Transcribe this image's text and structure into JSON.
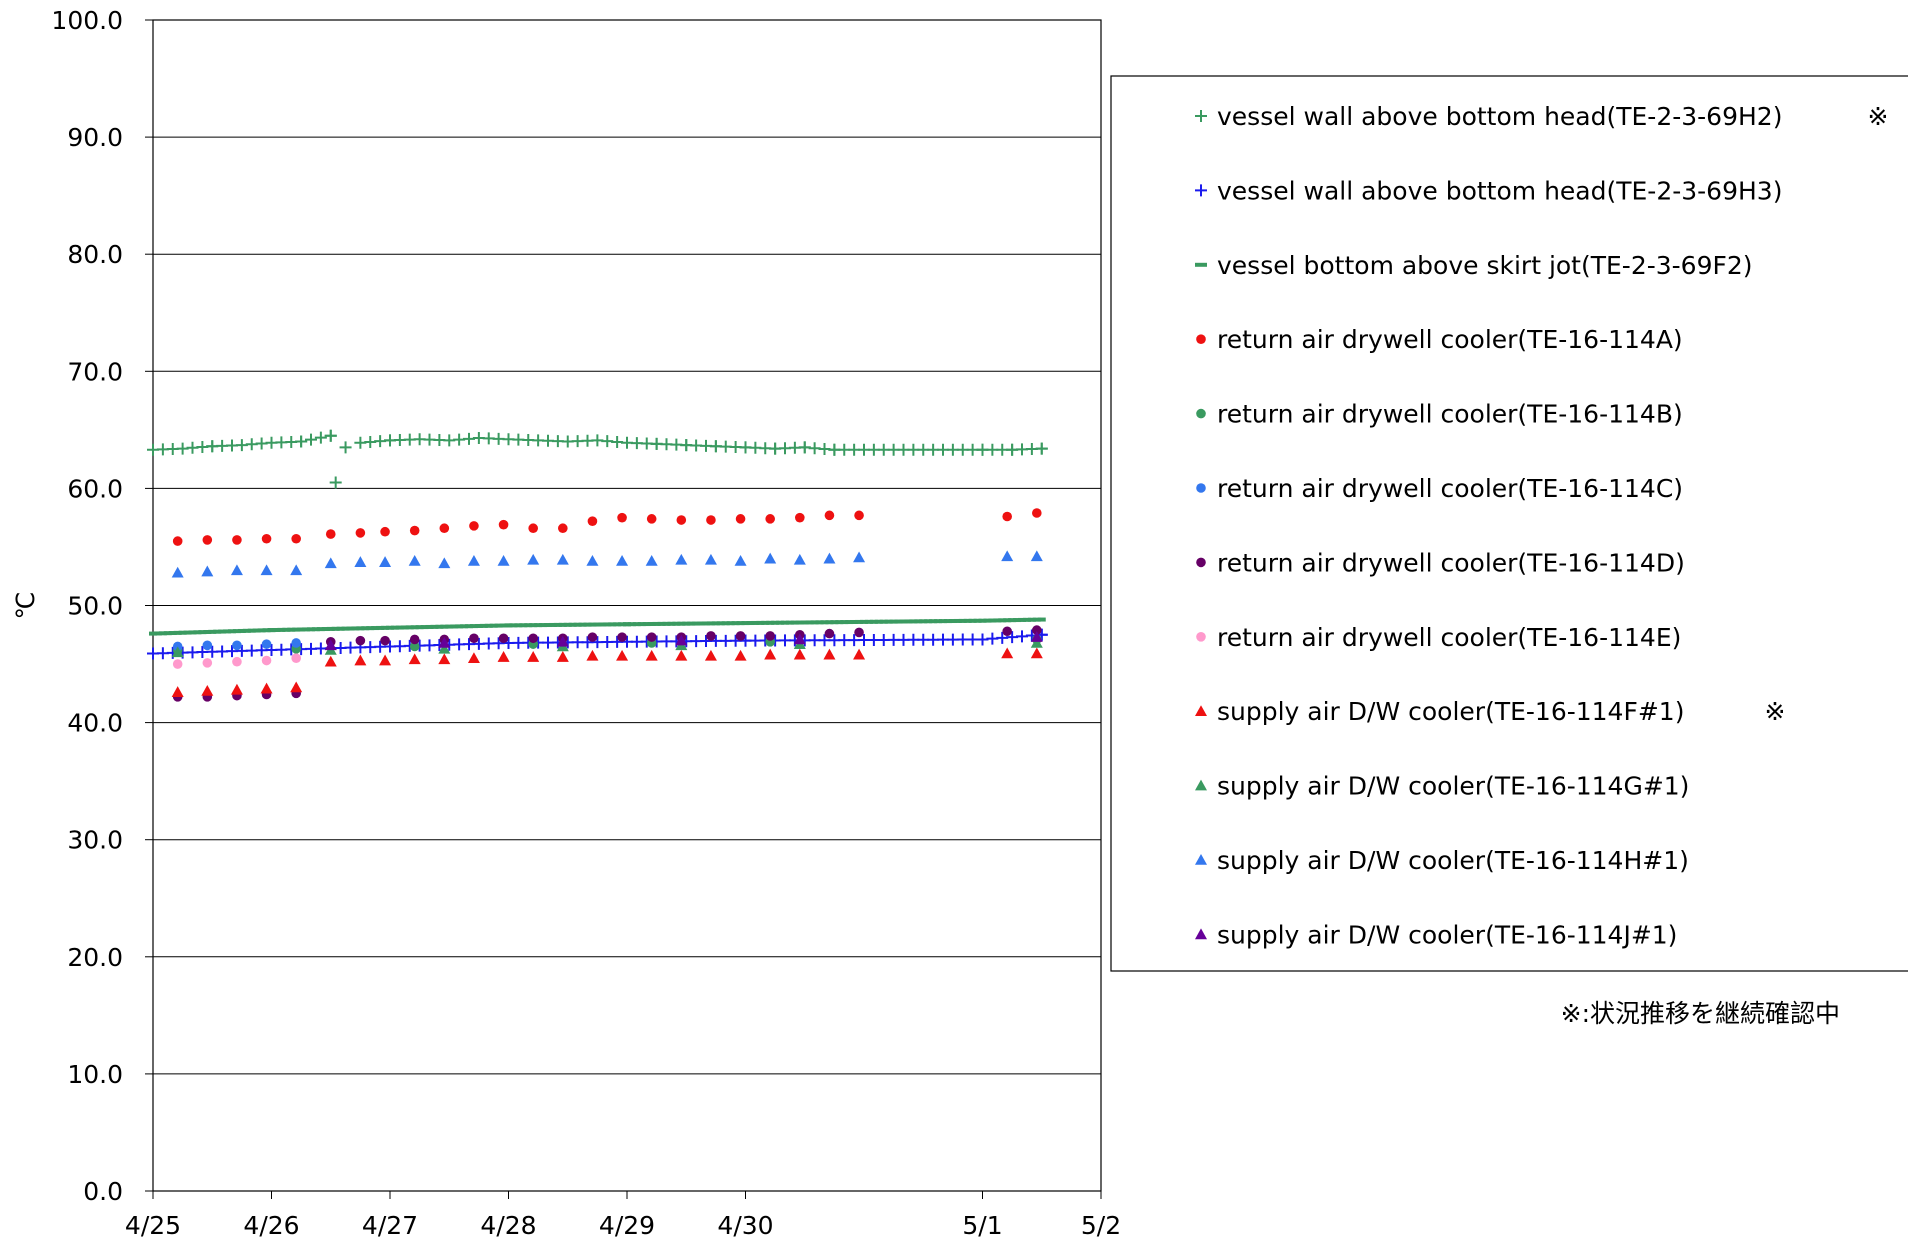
{
  "chart_data": {
    "type": "scatter",
    "ylabel": "℃",
    "ylim": [
      0,
      100
    ],
    "yticks": [
      "0.0",
      "10.0",
      "20.0",
      "30.0",
      "40.0",
      "50.0",
      "60.0",
      "70.0",
      "80.0",
      "90.0",
      "100.0"
    ],
    "xticks": [
      "4/25",
      "4/26",
      "4/27",
      "4/28",
      "4/29",
      "4/30",
      "5/1",
      "5/2"
    ],
    "xlim": [
      "4/25",
      "5/2"
    ],
    "grid": "horizontal",
    "legend_position": "right",
    "note": "※:状況推移を継続確認中",
    "series": [
      {
        "name": "vessel wall above bottom head(TE-2-3-69H2)",
        "flag": "※",
        "marker": "plus",
        "color": "#3a9a60",
        "start_x": "4/25",
        "end_x": "5/1 12:00",
        "values_note": "dense hourly trace",
        "points": [
          [
            "4/25",
            63.3
          ],
          [
            "4/25 06:00",
            63.4
          ],
          [
            "4/25 12:00",
            63.6
          ],
          [
            "4/25 18:00",
            63.7
          ],
          [
            "4/26",
            63.9
          ],
          [
            "4/26 06:00",
            64.0
          ],
          [
            "4/26 12:00",
            64.5
          ],
          [
            "4/26 13:00",
            60.5
          ],
          [
            "4/26 15:00",
            63.5
          ],
          [
            "4/26 18:00",
            63.9
          ],
          [
            "4/27",
            64.1
          ],
          [
            "4/27 06:00",
            64.2
          ],
          [
            "4/27 12:00",
            64.1
          ],
          [
            "4/27 18:00",
            64.3
          ],
          [
            "4/28",
            64.2
          ],
          [
            "4/28 06:00",
            64.1
          ],
          [
            "4/28 12:00",
            64.0
          ],
          [
            "4/28 18:00",
            64.1
          ],
          [
            "4/29",
            63.9
          ],
          [
            "4/29 06:00",
            63.8
          ],
          [
            "4/29 12:00",
            63.7
          ],
          [
            "4/29 18:00",
            63.6
          ],
          [
            "4/30",
            63.5
          ],
          [
            "4/30 06:00",
            63.4
          ],
          [
            "4/30 12:00",
            63.5
          ],
          [
            "4/30 18:00",
            63.3
          ],
          [
            "5/1",
            63.3
          ],
          [
            "5/1 06:00",
            63.3
          ],
          [
            "5/1 12:00",
            63.4
          ]
        ]
      },
      {
        "name": "vessel wall above bottom head(TE-2-3-69H3)",
        "marker": "plus",
        "color": "#1a1aee",
        "points": [
          [
            "4/25",
            45.9
          ],
          [
            "4/26",
            46.2
          ],
          [
            "4/27",
            46.5
          ],
          [
            "4/28",
            46.8
          ],
          [
            "4/29",
            46.9
          ],
          [
            "4/30",
            47.0
          ],
          [
            "5/1",
            47.1
          ],
          [
            "5/1 12:00",
            47.5
          ]
        ]
      },
      {
        "name": "vessel bottom above skirt jot(TE-2-3-69F2)",
        "marker": "dash",
        "color": "#3a9a60",
        "points": [
          [
            "4/25",
            47.6
          ],
          [
            "4/26",
            47.9
          ],
          [
            "4/27",
            48.1
          ],
          [
            "4/28",
            48.3
          ],
          [
            "4/29",
            48.4
          ],
          [
            "4/30",
            48.5
          ],
          [
            "5/1",
            48.7
          ],
          [
            "5/1 12:00",
            48.8
          ]
        ]
      },
      {
        "name": "return air drywell cooler(TE-16-114A)",
        "marker": "circle",
        "color": "#ee1111",
        "points": [
          [
            "4/25 05:00",
            55.5
          ],
          [
            "4/25 11:00",
            55.6
          ],
          [
            "4/25 17:00",
            55.6
          ],
          [
            "4/25 23:00",
            55.7
          ],
          [
            "4/26 05:00",
            55.7
          ],
          [
            "4/26 12:00",
            56.1
          ],
          [
            "4/26 18:00",
            56.2
          ],
          [
            "4/26 23:00",
            56.3
          ],
          [
            "4/27 05:00",
            56.4
          ],
          [
            "4/27 11:00",
            56.6
          ],
          [
            "4/27 17:00",
            56.8
          ],
          [
            "4/27 23:00",
            56.9
          ],
          [
            "4/28 05:00",
            56.6
          ],
          [
            "4/28 11:00",
            56.6
          ],
          [
            "4/28 17:00",
            57.2
          ],
          [
            "4/28 23:00",
            57.5
          ],
          [
            "4/29 05:00",
            57.4
          ],
          [
            "4/29 11:00",
            57.3
          ],
          [
            "4/29 17:00",
            57.3
          ],
          [
            "4/29 23:00",
            57.4
          ],
          [
            "4/30 05:00",
            57.4
          ],
          [
            "4/30 11:00",
            57.5
          ],
          [
            "4/30 17:00",
            57.7
          ],
          [
            "4/30 23:00",
            57.7
          ],
          [
            "5/1 05:00",
            57.6
          ],
          [
            "5/1 11:00",
            57.9
          ]
        ]
      },
      {
        "name": "return air drywell cooler(TE-16-114B)",
        "marker": "circle",
        "color": "#3a9a60",
        "points": [
          [
            "4/25 05:00",
            46.2
          ],
          [
            "4/26 05:00",
            46.3
          ],
          [
            "4/27 05:00",
            46.5
          ],
          [
            "4/28 05:00",
            46.7
          ],
          [
            "4/29 05:00",
            46.8
          ],
          [
            "4/30 05:00",
            46.9
          ],
          [
            "5/1 11:00",
            47.1
          ]
        ]
      },
      {
        "name": "return air drywell cooler(TE-16-114C)",
        "marker": "circle",
        "color": "#3377ee",
        "points": [
          [
            "4/25 05:00",
            46.5
          ],
          [
            "4/25 11:00",
            46.6
          ],
          [
            "4/25 17:00",
            46.6
          ],
          [
            "4/25 23:00",
            46.7
          ],
          [
            "4/26 05:00",
            46.8
          ]
        ]
      },
      {
        "name": "return air drywell cooler(TE-16-114D)",
        "marker": "circle",
        "color": "#660066",
        "points": [
          [
            "4/25 05:00",
            42.2
          ],
          [
            "4/25 11:00",
            42.2
          ],
          [
            "4/25 17:00",
            42.3
          ],
          [
            "4/25 23:00",
            42.4
          ],
          [
            "4/26 05:00",
            42.5
          ],
          [
            "4/26 12:00",
            46.9
          ],
          [
            "4/26 18:00",
            47.0
          ],
          [
            "4/26 23:00",
            47.0
          ],
          [
            "4/27 05:00",
            47.1
          ],
          [
            "4/27 11:00",
            47.1
          ],
          [
            "4/27 17:00",
            47.2
          ],
          [
            "4/27 23:00",
            47.2
          ],
          [
            "4/28 05:00",
            47.2
          ],
          [
            "4/28 11:00",
            47.2
          ],
          [
            "4/28 17:00",
            47.3
          ],
          [
            "4/28 23:00",
            47.3
          ],
          [
            "4/29 05:00",
            47.3
          ],
          [
            "4/29 11:00",
            47.3
          ],
          [
            "4/29 17:00",
            47.4
          ],
          [
            "4/29 23:00",
            47.4
          ],
          [
            "4/30 05:00",
            47.4
          ],
          [
            "4/30 11:00",
            47.5
          ],
          [
            "4/30 17:00",
            47.6
          ],
          [
            "4/30 23:00",
            47.7
          ],
          [
            "5/1 05:00",
            47.8
          ],
          [
            "5/1 11:00",
            47.9
          ]
        ]
      },
      {
        "name": "return air drywell cooler(TE-16-114E)",
        "marker": "circle",
        "color": "#ff99cc",
        "points": [
          [
            "4/25 05:00",
            45.0
          ],
          [
            "4/25 11:00",
            45.1
          ],
          [
            "4/25 17:00",
            45.2
          ],
          [
            "4/25 23:00",
            45.3
          ],
          [
            "4/26 05:00",
            45.5
          ]
        ]
      },
      {
        "name": "supply air D/W cooler(TE-16-114F#1)",
        "flag": "※",
        "marker": "triangle",
        "color": "#ee1111",
        "points": [
          [
            "4/25 05:00",
            42.6
          ],
          [
            "4/25 11:00",
            42.7
          ],
          [
            "4/25 17:00",
            42.8
          ],
          [
            "4/25 23:00",
            42.9
          ],
          [
            "4/26 05:00",
            43.0
          ],
          [
            "4/26 12:00",
            45.2
          ],
          [
            "4/26 18:00",
            45.3
          ],
          [
            "4/26 23:00",
            45.3
          ],
          [
            "4/27 05:00",
            45.4
          ],
          [
            "4/27 11:00",
            45.4
          ],
          [
            "4/27 17:00",
            45.5
          ],
          [
            "4/27 23:00",
            45.6
          ],
          [
            "4/28 05:00",
            45.6
          ],
          [
            "4/28 11:00",
            45.6
          ],
          [
            "4/28 17:00",
            45.7
          ],
          [
            "4/28 23:00",
            45.7
          ],
          [
            "4/29 05:00",
            45.7
          ],
          [
            "4/29 11:00",
            45.7
          ],
          [
            "4/29 17:00",
            45.7
          ],
          [
            "4/29 23:00",
            45.7
          ],
          [
            "4/30 05:00",
            45.8
          ],
          [
            "4/30 11:00",
            45.8
          ],
          [
            "4/30 17:00",
            45.8
          ],
          [
            "4/30 23:00",
            45.8
          ],
          [
            "5/1 05:00",
            45.9
          ],
          [
            "5/1 11:00",
            45.9
          ]
        ]
      },
      {
        "name": "supply air D/W cooler(TE-16-114G#1)",
        "marker": "triangle",
        "color": "#3a9a60",
        "points": [
          [
            "4/25 05:00",
            46.0
          ],
          [
            "4/26 12:00",
            46.2
          ],
          [
            "4/27 11:00",
            46.3
          ],
          [
            "4/28 11:00",
            46.5
          ],
          [
            "4/29 11:00",
            46.6
          ],
          [
            "4/30 11:00",
            46.7
          ],
          [
            "5/1 11:00",
            46.8
          ]
        ]
      },
      {
        "name": "supply air D/W cooler(TE-16-114H#1)",
        "marker": "triangle",
        "color": "#3377ee",
        "points": [
          [
            "4/25 05:00",
            52.8
          ],
          [
            "4/25 11:00",
            52.9
          ],
          [
            "4/25 17:00",
            53.0
          ],
          [
            "4/25 23:00",
            53.0
          ],
          [
            "4/26 05:00",
            53.0
          ],
          [
            "4/26 12:00",
            53.6
          ],
          [
            "4/26 18:00",
            53.7
          ],
          [
            "4/26 23:00",
            53.7
          ],
          [
            "4/27 05:00",
            53.8
          ],
          [
            "4/27 11:00",
            53.6
          ],
          [
            "4/27 17:00",
            53.8
          ],
          [
            "4/27 23:00",
            53.8
          ],
          [
            "4/28 05:00",
            53.9
          ],
          [
            "4/28 11:00",
            53.9
          ],
          [
            "4/28 17:00",
            53.8
          ],
          [
            "4/28 23:00",
            53.8
          ],
          [
            "4/29 05:00",
            53.8
          ],
          [
            "4/29 11:00",
            53.9
          ],
          [
            "4/29 17:00",
            53.9
          ],
          [
            "4/29 23:00",
            53.8
          ],
          [
            "4/30 05:00",
            54.0
          ],
          [
            "4/30 11:00",
            53.9
          ],
          [
            "4/30 17:00",
            54.0
          ],
          [
            "4/30 23:00",
            54.1
          ],
          [
            "5/1 05:00",
            54.2
          ],
          [
            "5/1 11:00",
            54.2
          ]
        ]
      },
      {
        "name": "supply air D/W cooler(TE-16-114J#1)",
        "marker": "triangle",
        "color": "#660099",
        "points": [
          [
            "4/26 12:00",
            46.6
          ],
          [
            "4/27 11:00",
            46.8
          ],
          [
            "4/28 11:00",
            46.9
          ],
          [
            "4/29 11:00",
            47.0
          ],
          [
            "4/30 11:00",
            47.1
          ],
          [
            "5/1 11:00",
            47.3
          ]
        ]
      }
    ]
  }
}
